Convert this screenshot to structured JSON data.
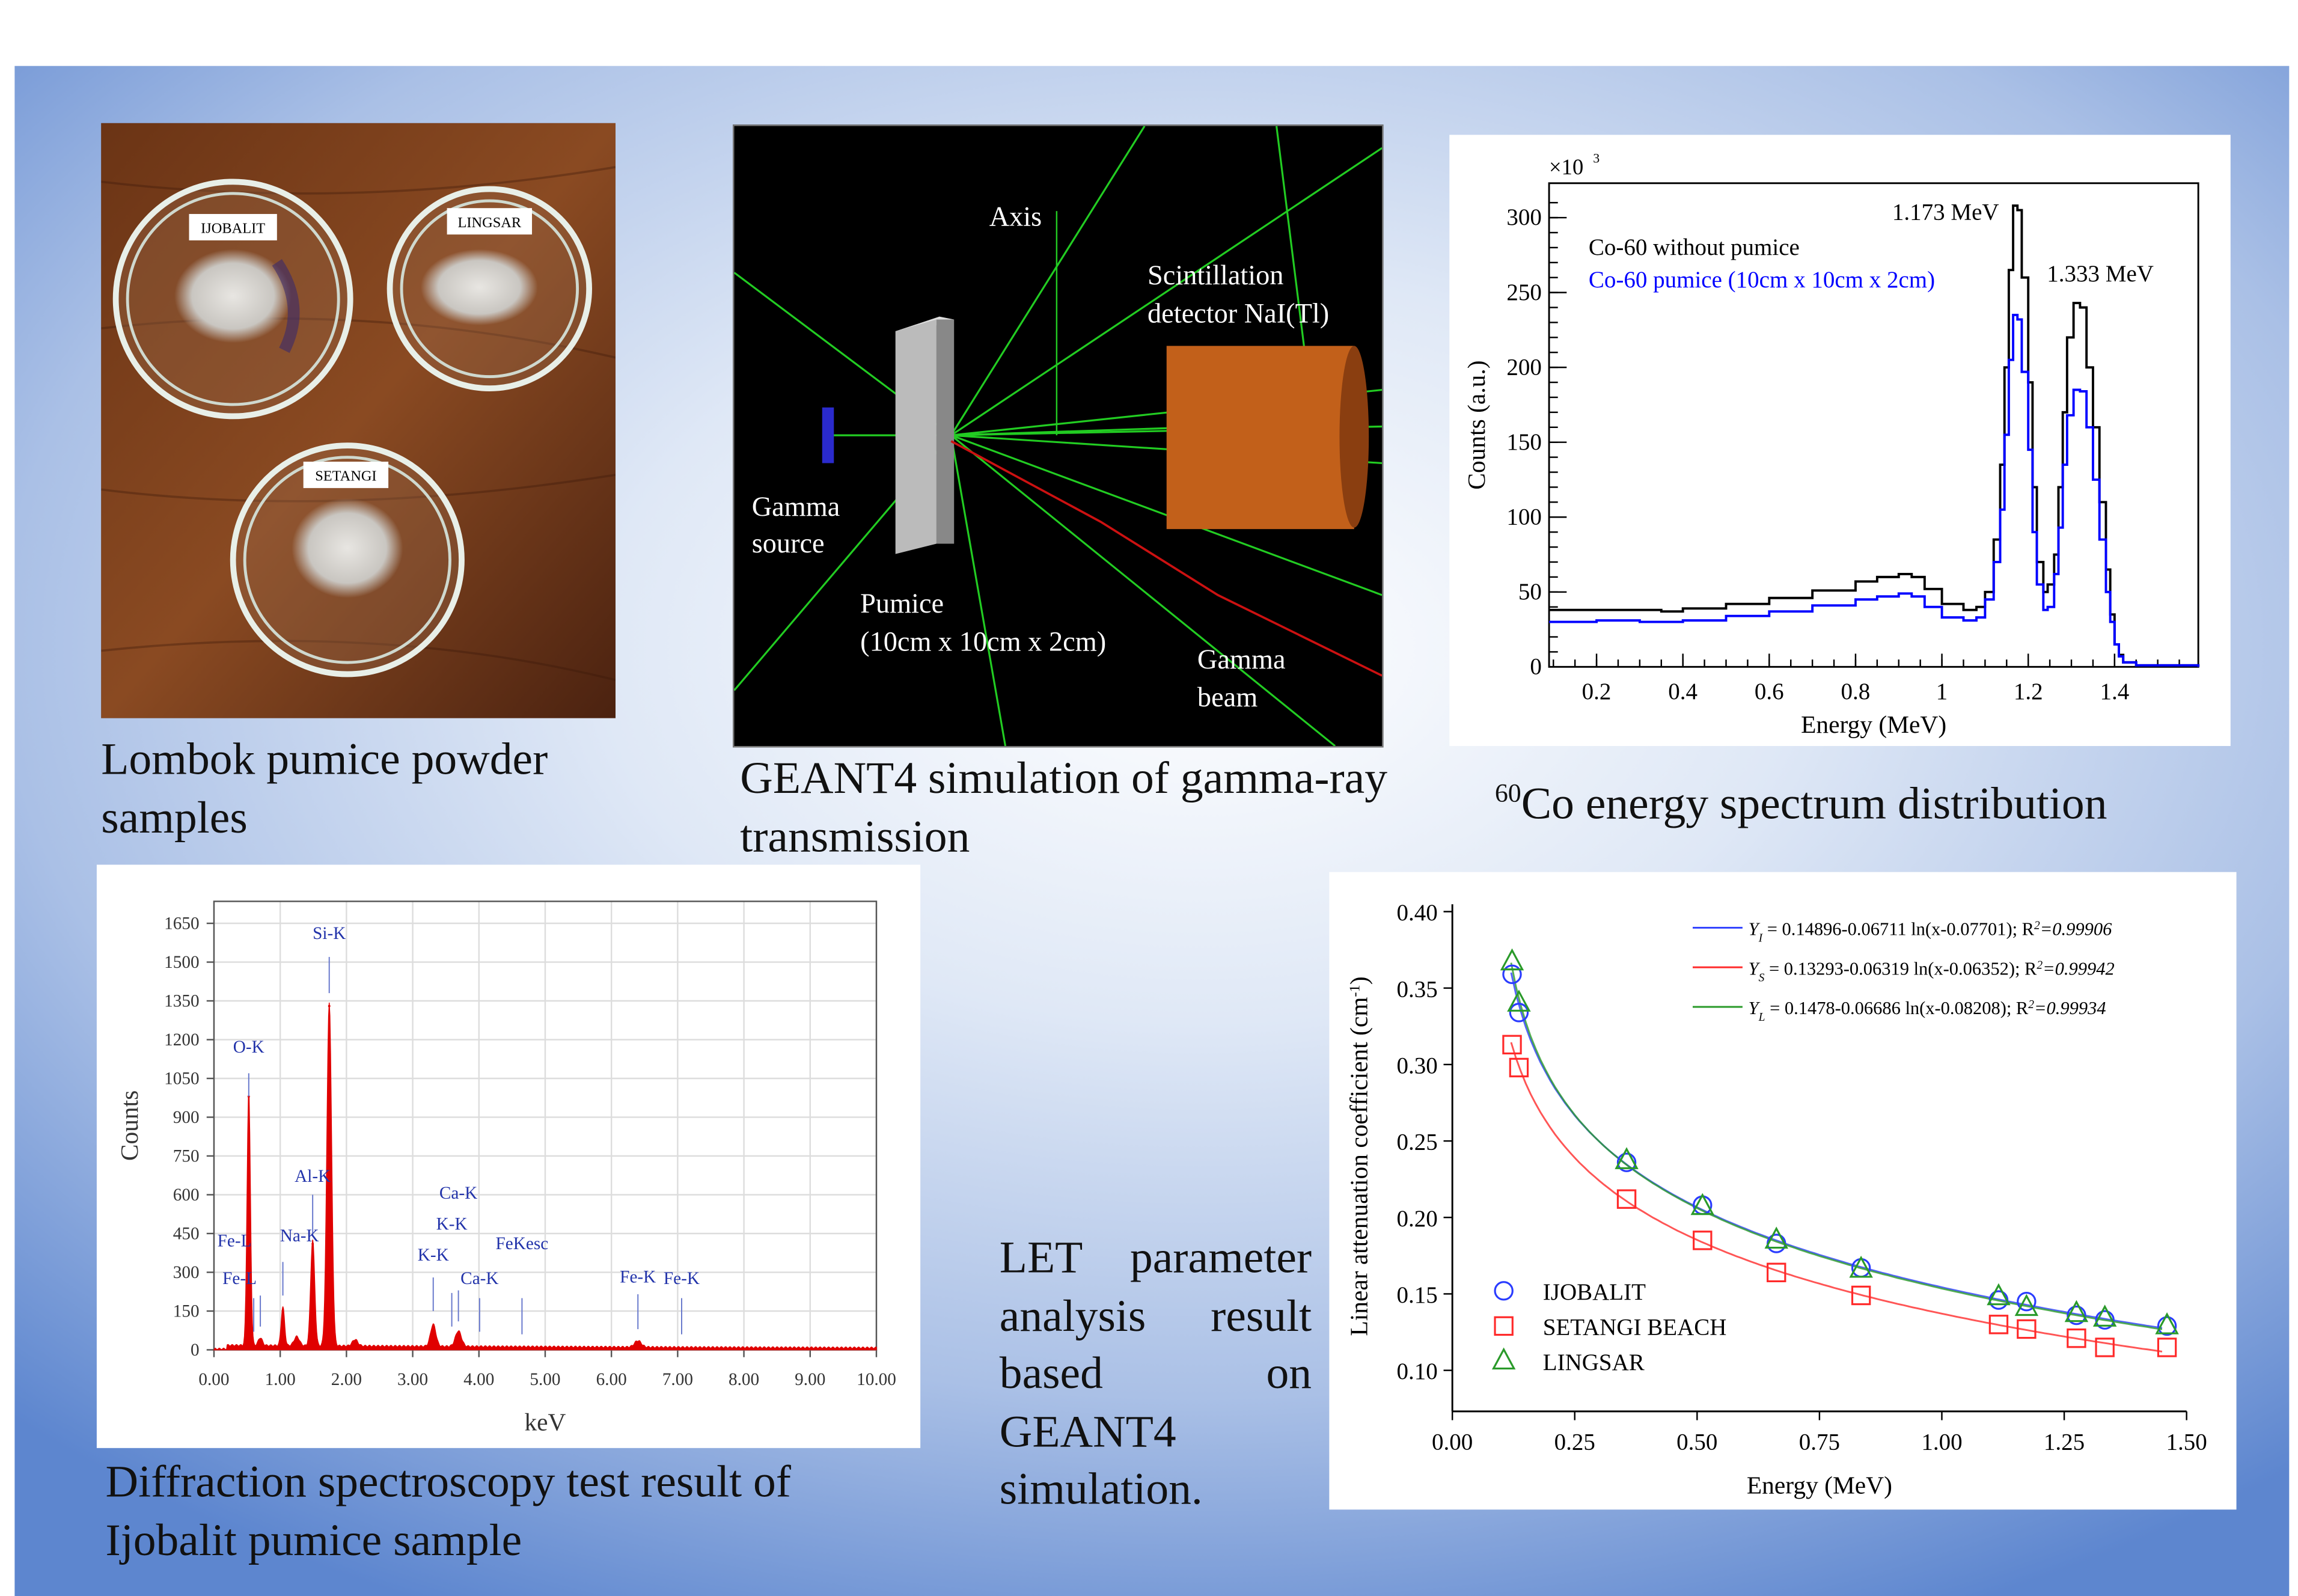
{
  "photo": {
    "labels": [
      "IJOBALIT",
      "LINGSAR",
      "SETANGI"
    ],
    "caption": "Lombok pumice powder samples"
  },
  "geant4": {
    "labels": {
      "axis": "Axis",
      "detector_line1": "Scintillation",
      "detector_line2": "detector NaI(Tl)",
      "source_line1": "Gamma",
      "source_line2": "source",
      "pumice_line1": "Pumice",
      "pumice_line2": "(10cm x 10cm x 2cm)",
      "beam_line1": "Gamma",
      "beam_line2": "beam"
    },
    "caption": "GEANT4 simulation of gamma-ray transmission"
  },
  "co_caption": {
    "sup": "60",
    "text": "Co energy spectrum distribution"
  },
  "eds_caption": "Diffraction spectroscopy test result of Ijobalit pumice sample",
  "let_caption": "LET parameter analysis result based on GEANT4 simulation.",
  "chart_data": [
    {
      "id": "co60",
      "type": "line",
      "style": "step-histogram",
      "xlabel": "Energy (MeV)",
      "ylabel": "Counts (a.u.)",
      "y_multiplier": "×10",
      "y_multiplier_exp": "3",
      "xlim": [
        0.09,
        1.594
      ],
      "ylim": [
        0,
        323
      ],
      "xticks": [
        0.2,
        0.4,
        0.6,
        0.8,
        1,
        1.2,
        1.4
      ],
      "xtick_labels": [
        "0.2",
        "0.4",
        "0.6",
        "0.8",
        "1",
        "1.2",
        "1.4"
      ],
      "yticks": [
        0,
        50,
        100,
        150,
        200,
        250,
        300
      ],
      "ytick_labels": [
        "0",
        "50",
        "100",
        "150",
        "200",
        "250",
        "300"
      ],
      "annotations": [
        {
          "text": "1.173 MeV",
          "x": 1.173,
          "y": 300
        },
        {
          "text": "1.333 MeV",
          "x": 1.333,
          "y": 262
        }
      ],
      "legend_placement": "top-left",
      "series": [
        {
          "name": "Co-60 without pumice",
          "color": "#000000",
          "x": [
            0.09,
            0.2,
            0.3,
            0.35,
            0.4,
            0.5,
            0.6,
            0.7,
            0.8,
            0.85,
            0.9,
            0.93,
            0.96,
            1.0,
            1.05,
            1.08,
            1.1,
            1.12,
            1.135,
            1.145,
            1.155,
            1.165,
            1.175,
            1.185,
            1.2,
            1.21,
            1.22,
            1.235,
            1.245,
            1.26,
            1.27,
            1.28,
            1.29,
            1.305,
            1.32,
            1.335,
            1.35,
            1.365,
            1.38,
            1.39,
            1.4,
            1.41,
            1.42,
            1.45,
            1.594
          ],
          "y": [
            38,
            38,
            38,
            37,
            39,
            42,
            46,
            51,
            57,
            60,
            62,
            60,
            52,
            42,
            38,
            40,
            50,
            85,
            135,
            200,
            265,
            308,
            305,
            260,
            190,
            120,
            70,
            50,
            55,
            75,
            120,
            170,
            220,
            243,
            240,
            200,
            160,
            110,
            65,
            35,
            15,
            8,
            3,
            1,
            0
          ]
        },
        {
          "name": "Co-60 pumice (10cm x 10cm x 2cm)",
          "color": "#0000ff",
          "x": [
            0.09,
            0.2,
            0.3,
            0.35,
            0.4,
            0.5,
            0.6,
            0.7,
            0.8,
            0.85,
            0.9,
            0.93,
            0.96,
            1.0,
            1.05,
            1.08,
            1.1,
            1.12,
            1.135,
            1.145,
            1.155,
            1.165,
            1.175,
            1.185,
            1.2,
            1.21,
            1.22,
            1.235,
            1.245,
            1.26,
            1.27,
            1.28,
            1.29,
            1.305,
            1.32,
            1.335,
            1.35,
            1.365,
            1.38,
            1.39,
            1.4,
            1.41,
            1.42,
            1.45,
            1.594
          ],
          "y": [
            30,
            31,
            30,
            30,
            31,
            34,
            37,
            41,
            45,
            47,
            49,
            47,
            40,
            33,
            31,
            33,
            45,
            70,
            105,
            155,
            205,
            235,
            232,
            197,
            145,
            90,
            55,
            38,
            40,
            62,
            93,
            135,
            168,
            185,
            184,
            160,
            125,
            85,
            50,
            30,
            15,
            7,
            3,
            1,
            0
          ]
        }
      ]
    },
    {
      "id": "eds",
      "type": "area",
      "xlabel": "keV",
      "ylabel": "Counts",
      "xlim": [
        0,
        10
      ],
      "ylim": [
        0,
        1750
      ],
      "grid": true,
      "color": "#e00000",
      "xticks": [
        0,
        1,
        2,
        3,
        4,
        5,
        6,
        7,
        8,
        9,
        10
      ],
      "xtick_labels": [
        "0.00",
        "1.00",
        "2.00",
        "3.00",
        "4.00",
        "5.00",
        "6.00",
        "7.00",
        "8.00",
        "9.00",
        "10.00"
      ],
      "yticks": [
        0,
        150,
        300,
        450,
        600,
        750,
        900,
        1050,
        1200,
        1350,
        1500,
        1650
      ],
      "ytick_labels": [
        "0",
        "150",
        "300",
        "450",
        "600",
        "750",
        "900",
        "1050",
        "1200",
        "1350",
        "1500",
        "1650"
      ],
      "background_counts": 18,
      "peaks": [
        {
          "energy": 0.525,
          "counts": 980,
          "width": 0.025
        },
        {
          "energy": 0.7,
          "counts": 30,
          "width": 0.03
        },
        {
          "energy": 1.04,
          "counts": 150,
          "width": 0.025
        },
        {
          "energy": 1.25,
          "counts": 35,
          "width": 0.04
        },
        {
          "energy": 1.49,
          "counts": 410,
          "width": 0.03
        },
        {
          "energy": 1.74,
          "counts": 1330,
          "width": 0.035
        },
        {
          "energy": 2.13,
          "counts": 25,
          "width": 0.04
        },
        {
          "energy": 3.31,
          "counts": 85,
          "width": 0.04
        },
        {
          "energy": 3.69,
          "counts": 60,
          "width": 0.045
        },
        {
          "energy": 6.4,
          "counts": 25,
          "width": 0.05
        }
      ],
      "peak_labels": [
        {
          "text": "Si-K",
          "x": 1.74,
          "label_y": 1590,
          "line_top": 1520,
          "line_bottom": 1380
        },
        {
          "text": "O-K",
          "x": 0.525,
          "label_y": 1150,
          "line_top": 1070,
          "line_bottom": 980
        },
        {
          "text": "Al-K",
          "x": 1.49,
          "label_y": 650,
          "line_top": 600,
          "line_bottom": 440
        },
        {
          "text": "Na-K",
          "x": 1.04,
          "label_y": 420,
          "line_top": 340,
          "line_bottom": 210
        },
        {
          "text": "Fe-L",
          "x": 0.7,
          "label_y": 400,
          "line_top": 210,
          "line_bottom": 90
        },
        {
          "text": "Fe-L",
          "x": 0.6,
          "label_y": 255,
          "line_top": 200,
          "line_bottom": 70
        },
        {
          "text": "K-K",
          "x": 3.31,
          "label_y": 345,
          "line_top": 280,
          "line_bottom": 150
        },
        {
          "text": "K-K",
          "x": 3.59,
          "label_y": 465,
          "line_top": 220,
          "line_bottom": 90
        },
        {
          "text": "Ca-K",
          "x": 3.69,
          "label_y": 585,
          "line_top": 230,
          "line_bottom": 110
        },
        {
          "text": "Ca-K",
          "x": 4.01,
          "label_y": 255,
          "line_top": 200,
          "line_bottom": 70
        },
        {
          "text": "FeKesc",
          "x": 4.65,
          "label_y": 390,
          "line_top": 200,
          "line_bottom": 60
        },
        {
          "text": "Fe-K",
          "x": 6.4,
          "label_y": 260,
          "line_top": 215,
          "line_bottom": 80
        },
        {
          "text": "Fe-K",
          "x": 7.06,
          "label_y": 255,
          "line_top": 200,
          "line_bottom": 60
        }
      ]
    },
    {
      "id": "attenuation",
      "type": "scatter",
      "xlabel": "Energy (MeV)",
      "ylabel": "Linear attenuation coefficient (cm",
      "ylabel_sup": "-1",
      "ylabel_end": ")",
      "xlim": [
        0,
        1.5
      ],
      "ylim": [
        0.073,
        0.4
      ],
      "xticks": [
        0,
        0.25,
        0.5,
        0.75,
        1,
        1.25,
        1.5
      ],
      "xtick_labels": [
        "0.00",
        "0.25",
        "0.50",
        "0.75",
        "1.00",
        "1.25",
        "1.50"
      ],
      "yticks": [
        0.1,
        0.15,
        0.2,
        0.25,
        0.3,
        0.35,
        0.4
      ],
      "ytick_labels": [
        "0.10",
        "0.15",
        "0.20",
        "0.25",
        "0.30",
        "0.35",
        "0.40"
      ],
      "x": [
        0.122,
        0.136,
        0.356,
        0.511,
        0.662,
        0.835,
        1.116,
        1.173,
        1.275,
        1.333,
        1.46
      ],
      "series": [
        {
          "name": "IJOBALIT",
          "marker": "circle",
          "color": "#2a3cff",
          "y": [
            0.359,
            0.334,
            0.236,
            0.208,
            0.183,
            0.167,
            0.146,
            0.145,
            0.136,
            0.133,
            0.129
          ],
          "fit": {
            "a": 0.14896,
            "b": 0.06711,
            "c": 0.07701,
            "label_sym": "Y",
            "label_sub": "I",
            "label_text": " = 0.14896-0.06711 ln(x-0.07701); R",
            "label_r2": "=0.99906"
          }
        },
        {
          "name": "SETANGI BEACH",
          "marker": "square",
          "color": "#ff2a2a",
          "y": [
            0.313,
            0.298,
            0.212,
            0.185,
            0.164,
            0.149,
            0.13,
            0.127,
            0.121,
            0.115,
            0.115
          ],
          "fit": {
            "a": 0.13293,
            "b": 0.06319,
            "c": 0.06352,
            "label_sym": "Y",
            "label_sub": "S",
            "label_text": " = 0.13293-0.06319 ln(x-0.06352); R",
            "label_r2": "=0.99942"
          }
        },
        {
          "name": "LINGSAR",
          "marker": "triangle",
          "color": "#2a9a2a",
          "y": [
            0.367,
            0.34,
            0.237,
            0.207,
            0.185,
            0.166,
            0.148,
            0.141,
            0.137,
            0.134,
            0.129
          ],
          "fit": {
            "a": 0.1478,
            "b": 0.06686,
            "c": 0.08208,
            "label_sym": "Y",
            "label_sub": "L",
            "label_text": " = 0.1478-0.06686 ln(x-0.08208);  R",
            "label_r2": "=0.99934"
          }
        }
      ],
      "legend_placement": "bottom-left",
      "fit_legend_placement": "top-right"
    }
  ]
}
